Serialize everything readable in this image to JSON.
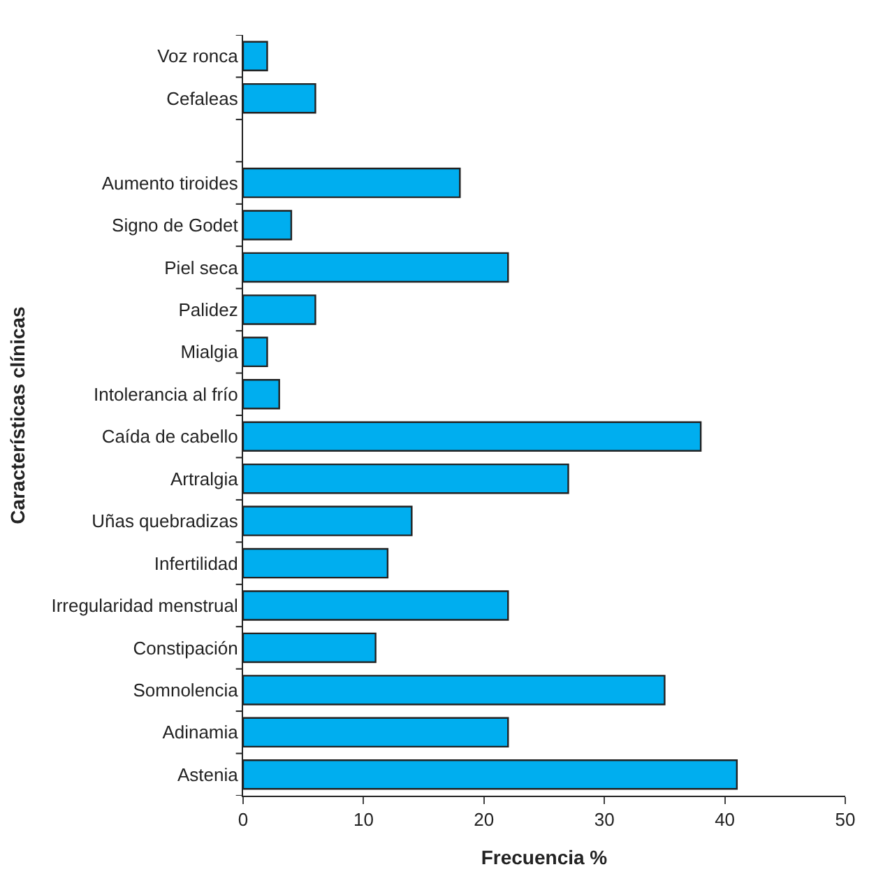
{
  "chart_data": {
    "type": "bar",
    "orientation": "horizontal",
    "xlabel": "Frecuencia %",
    "ylabel": "Características clínicas",
    "categories": [
      "Voz ronca",
      "Cefaleas",
      null,
      "Aumento tiroides",
      "Signo de Godet",
      "Piel seca",
      "Palidez",
      "Mialgia",
      "Intolerancia al frío",
      "Caída de cabello",
      "Artralgia",
      "Uñas quebradizas",
      "Infertilidad",
      "Irregularidad menstrual",
      "Constipación",
      "Somnolencia",
      "Adinamia",
      "Astenia"
    ],
    "values": [
      2,
      6,
      null,
      18,
      4,
      22,
      6,
      2,
      3,
      38,
      27,
      14,
      12,
      22,
      11,
      35,
      22,
      41
    ],
    "color": "#00aeef",
    "xlim": [
      0,
      50
    ],
    "xticks": [
      0,
      10,
      20,
      30,
      40,
      50
    ],
    "legend": false
  }
}
